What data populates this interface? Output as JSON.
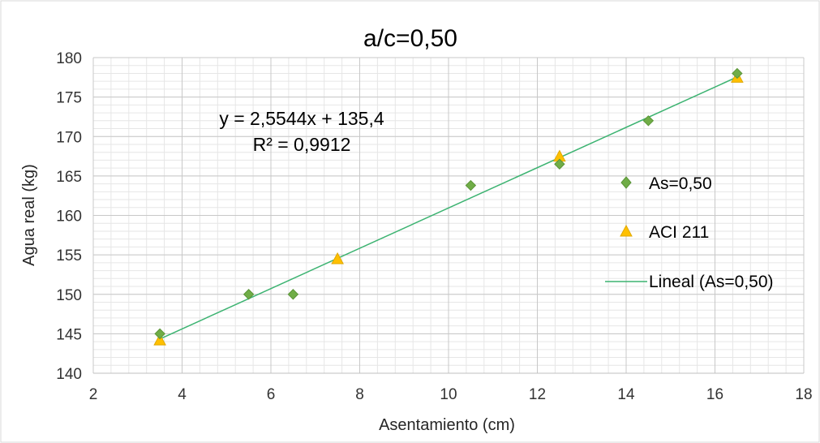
{
  "chart_data": {
    "type": "scatter",
    "title": "a/c=0,50",
    "xlabel": "Asentamiento (cm)",
    "ylabel": "Agua real (kg)",
    "xlim": [
      2,
      18
    ],
    "ylim": [
      140,
      180
    ],
    "x_ticks": [
      "2",
      "4",
      "6",
      "8",
      "10",
      "12",
      "14",
      "16",
      "18"
    ],
    "y_ticks": [
      "140",
      "145",
      "150",
      "155",
      "160",
      "165",
      "170",
      "175",
      "180"
    ],
    "grid": true,
    "minor_grid": true,
    "legend_position": "right",
    "series": [
      {
        "name": "As=0,50",
        "marker": "diamond",
        "color": "#70ad47",
        "x": [
          3.5,
          5.5,
          6.5,
          10.5,
          12.5,
          14.5,
          16.5
        ],
        "y": [
          145.0,
          150.0,
          150.0,
          163.8,
          166.5,
          172.0,
          178.0
        ]
      },
      {
        "name": "ACI 211",
        "marker": "triangle",
        "color": "#ffc000",
        "x": [
          3.5,
          7.5,
          12.5,
          16.5
        ],
        "y": [
          144.2,
          154.5,
          167.5,
          177.5
        ]
      }
    ],
    "trendline": {
      "name": "Lineal (As=0,50)",
      "color": "#3cb371",
      "slope": 2.5544,
      "intercept": 135.4,
      "x_range": [
        3.5,
        16.5
      ],
      "equation": "y = 2,5544x + 135,4",
      "r2": "R² = 0,9912"
    }
  }
}
